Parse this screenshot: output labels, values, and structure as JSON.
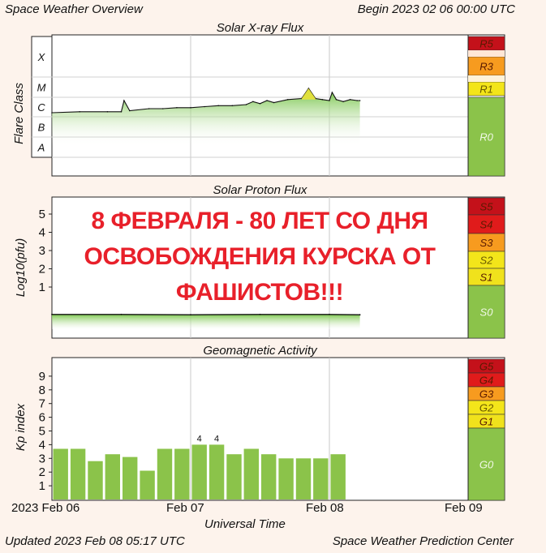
{
  "header": {
    "title": "Space Weather Overview",
    "begin": "Begin 2023 02 06 00:00 UTC"
  },
  "footer": {
    "updated": "Updated 2023 Feb 08 05:17 UTC",
    "center": "Space Weather Prediction Center",
    "xaxis_title": "Universal Time",
    "x_ticks": [
      "2023 Feb 06",
      "Feb 07",
      "Feb 08",
      "Feb 09"
    ]
  },
  "overlay_text": [
    "8 ФЕВРАЛЯ - 80 ЛЕТ СО ДНЯ",
    "ОСВОБОЖДЕНИЯ КУРСКА ОТ",
    "ФАШИСТОВ!!!"
  ],
  "colors": {
    "green": "#8bc34a",
    "yellow": "#f3e51a",
    "orange": "#f79b1f",
    "red": "#e01b1b",
    "dark_red": "#c4111a",
    "overlay": "#e8202a"
  },
  "chart_data": [
    {
      "type": "area",
      "title": "Solar X-ray Flux",
      "ylabel": "Flare Class",
      "y_categories": [
        "A",
        "B",
        "C",
        "M",
        "X"
      ],
      "x_range_days": [
        0,
        3
      ],
      "x": [
        0.0,
        0.2,
        0.4,
        0.5,
        0.52,
        0.56,
        0.7,
        0.8,
        0.9,
        1.0,
        1.1,
        1.2,
        1.3,
        1.4,
        1.45,
        1.5,
        1.55,
        1.6,
        1.7,
        1.8,
        1.85,
        1.9,
        1.95,
        2.0,
        2.02,
        2.05,
        2.1,
        2.15,
        2.2,
        2.22
      ],
      "class_level": [
        2.2,
        2.25,
        2.25,
        2.25,
        2.8,
        2.3,
        2.4,
        2.4,
        2.45,
        2.45,
        2.5,
        2.55,
        2.55,
        2.6,
        2.75,
        2.65,
        2.8,
        2.7,
        2.85,
        2.9,
        3.4,
        2.9,
        2.85,
        2.8,
        3.2,
        2.85,
        2.75,
        2.85,
        2.8,
        2.8
      ],
      "scale_labels": [
        "R5",
        "R3",
        "R1",
        "R0"
      ]
    },
    {
      "type": "area",
      "title": "Solar Proton Flux",
      "ylabel": "Log10(pfu)",
      "y_ticks": [
        1,
        2,
        3,
        4,
        5
      ],
      "ylim": [
        -1.5,
        6
      ],
      "x_range_days": [
        0,
        3
      ],
      "x": [
        0.0,
        0.5,
        1.0,
        1.5,
        2.0,
        2.22
      ],
      "values": [
        -0.5,
        -0.5,
        -0.52,
        -0.5,
        -0.5,
        -0.52
      ],
      "scale_labels": [
        "S5",
        "S4",
        "S3",
        "S2",
        "S1",
        "S0"
      ]
    },
    {
      "type": "bar",
      "title": "Geomagnetic Activity",
      "ylabel": "Kp index",
      "y_ticks": [
        1,
        2,
        3,
        4,
        5,
        6,
        7,
        8,
        9
      ],
      "ylim": [
        0,
        10
      ],
      "x_range_days": [
        0,
        3
      ],
      "values": [
        3.7,
        3.7,
        2.8,
        3.3,
        3.1,
        2.1,
        3.7,
        3.7,
        4.0,
        4.0,
        3.3,
        3.7,
        3.3,
        3.0,
        3.0,
        3.0,
        3.3
      ],
      "data_labels": [
        "",
        "",
        "",
        "",
        "",
        "",
        "",
        "",
        "4",
        "4",
        "",
        "",
        "",
        "",
        "",
        "",
        ""
      ],
      "scale_labels": [
        "G5",
        "G4",
        "G3",
        "G2",
        "G1",
        "G0"
      ]
    }
  ]
}
